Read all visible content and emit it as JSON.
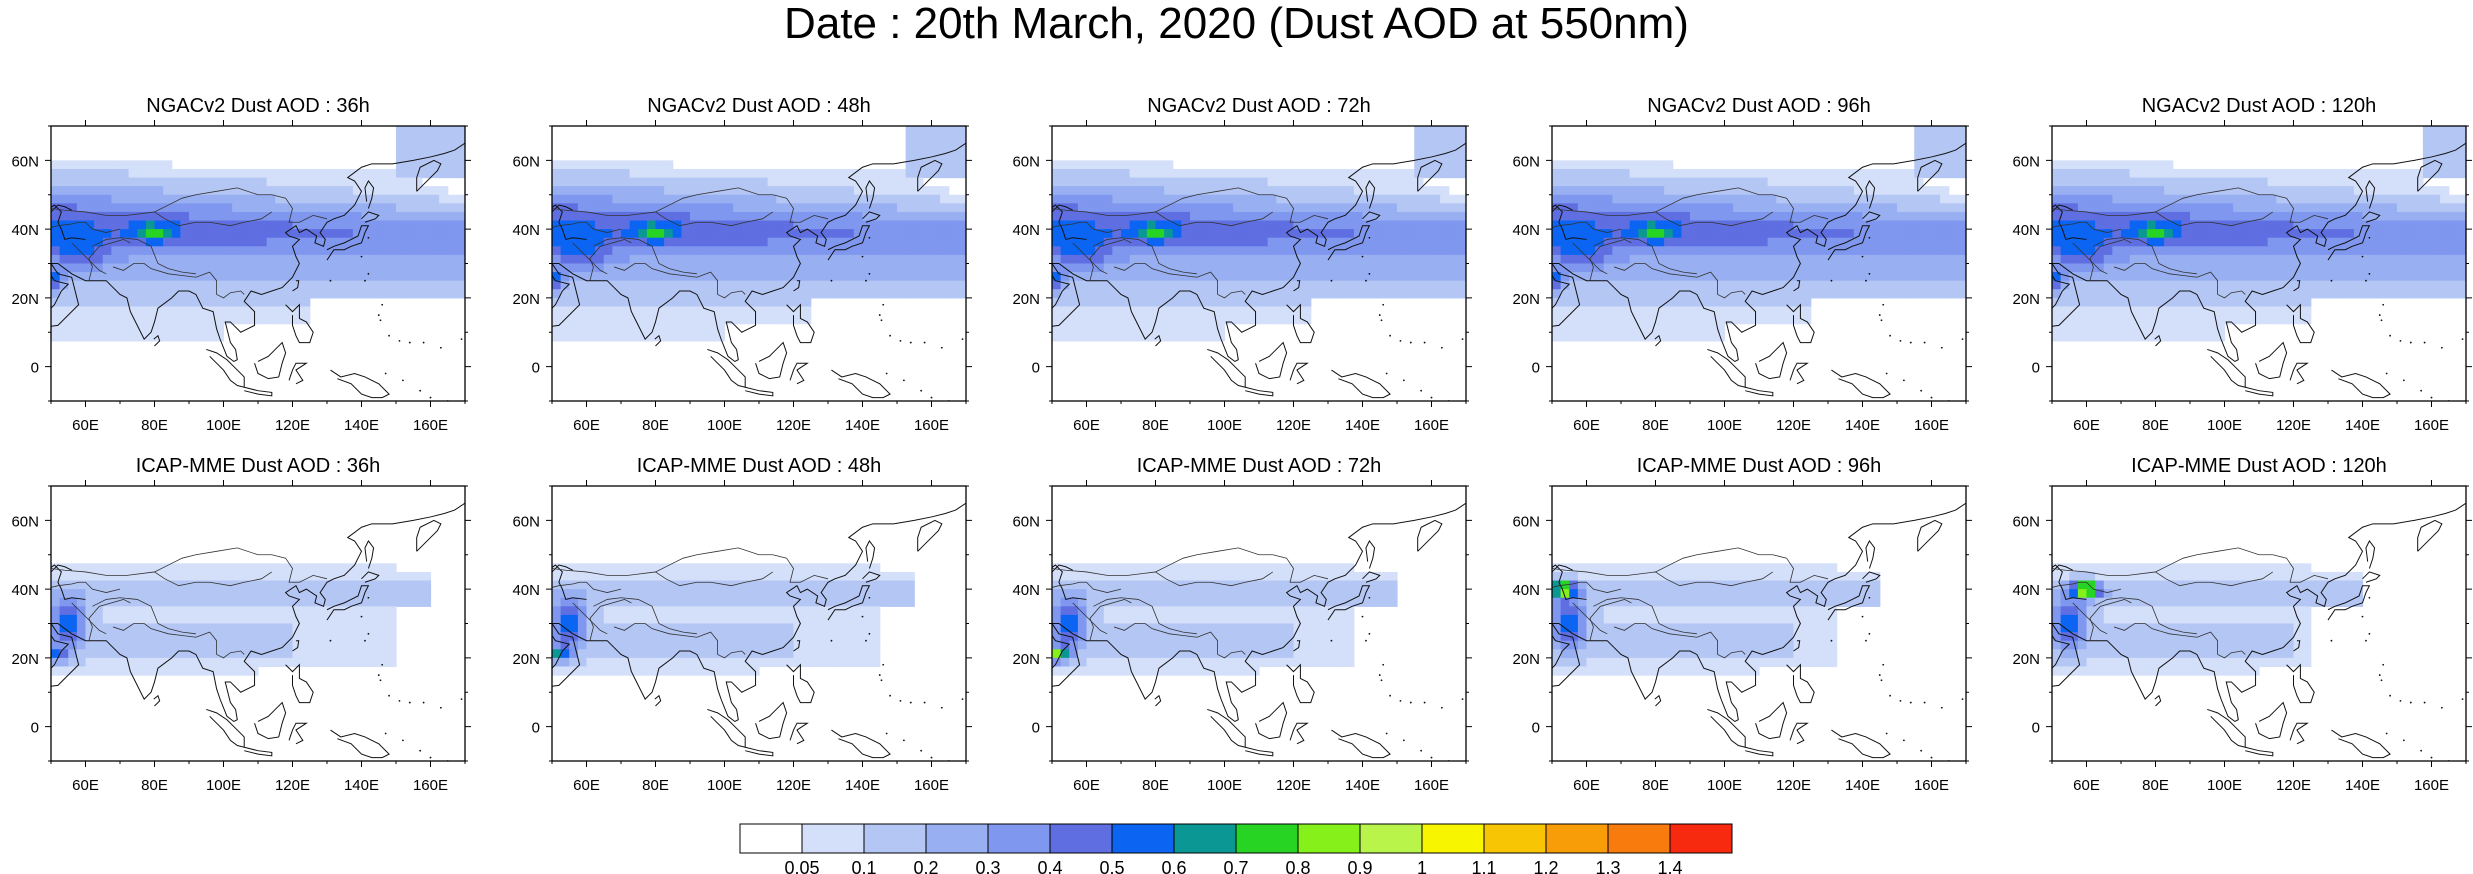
{
  "title": "Date : 20th March, 2020 (Dust AOD at 550nm)",
  "lat_labels": [
    "60N",
    "40N",
    "20N",
    "0"
  ],
  "lon_labels": [
    "60E",
    "80E",
    "100E",
    "120E",
    "140E",
    "160E"
  ],
  "panels": [
    {
      "title": "NGACv2 Dust AOD : 36h"
    },
    {
      "title": "NGACv2 Dust AOD : 48h"
    },
    {
      "title": "NGACv2 Dust AOD : 72h"
    },
    {
      "title": "NGACv2 Dust AOD : 96h"
    },
    {
      "title": "NGACv2 Dust AOD : 120h"
    },
    {
      "title": "ICAP-MME Dust AOD : 36h"
    },
    {
      "title": "ICAP-MME Dust AOD : 48h"
    },
    {
      "title": "ICAP-MME Dust AOD : 72h"
    },
    {
      "title": "ICAP-MME Dust AOD : 96h"
    },
    {
      "title": "ICAP-MME Dust AOD : 120h"
    }
  ],
  "colorbar": {
    "colors": [
      "#ffffff",
      "#d4dffa",
      "#b4c6f4",
      "#98b0f2",
      "#7f97ee",
      "#5f6fe2",
      "#0b64f2",
      "#0b9793",
      "#27d424",
      "#86f01a",
      "#b8f44a",
      "#f7f500",
      "#f8c504",
      "#f89c08",
      "#f87b0e",
      "#f7290f"
    ],
    "labels": [
      "0.05",
      "0.1",
      "0.2",
      "0.3",
      "0.4",
      "0.5",
      "0.6",
      "0.7",
      "0.8",
      "0.9",
      "1",
      "1.1",
      "1.2",
      "1.3",
      "1.4"
    ]
  }
}
